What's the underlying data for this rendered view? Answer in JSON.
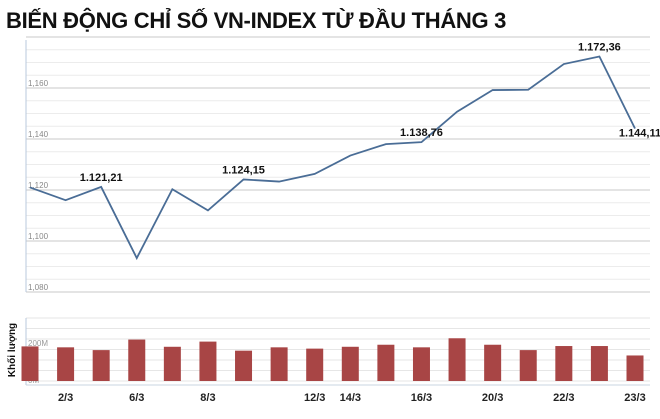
{
  "title": "BIẾN ĐỘNG CHỈ SỐ VN-INDEX TỪ ĐẦU THÁNG 3",
  "chart_data": [
    {
      "type": "line",
      "ylim": [
        1080,
        1180
      ],
      "yticks": [
        1080,
        1100,
        1120,
        1140,
        1160
      ],
      "ytick_labels": [
        "1,080",
        "1,100",
        "1,120",
        "1,140",
        "1,160"
      ],
      "grid": true,
      "color": "#4a6d96",
      "values": [
        1121,
        1116,
        1121.21,
        1093.3,
        1120.3,
        1112,
        1124.15,
        1123.3,
        1126.3,
        1133.5,
        1138,
        1138.76,
        1150.7,
        1159.2,
        1159.3,
        1169.4,
        1172.36,
        1144.11
      ],
      "annotations": [
        {
          "index": 2,
          "text": "1.121,21"
        },
        {
          "index": 6,
          "text": "1.124,15"
        },
        {
          "index": 11,
          "text": "1.138,76"
        },
        {
          "index": 16,
          "text": "1.172,36"
        },
        {
          "index": 17,
          "text": "1.144,11"
        }
      ]
    },
    {
      "type": "bar",
      "ylabel": "Khối lượng",
      "yticks": [
        0,
        200
      ],
      "ytick_labels": [
        "0M",
        "200M"
      ],
      "grid": true,
      "color": "#a84545",
      "categories": [
        "",
        "2/3",
        "",
        "6/3",
        "",
        "8/3",
        "",
        "",
        "12/3",
        "14/3",
        "",
        "16/3",
        "",
        "20/3",
        "",
        "22/3",
        "",
        "23/3"
      ],
      "values": [
        187,
        182,
        167,
        224,
        185,
        213,
        164,
        182,
        175,
        185,
        196,
        182,
        231,
        196,
        167,
        189,
        189,
        138
      ]
    }
  ]
}
